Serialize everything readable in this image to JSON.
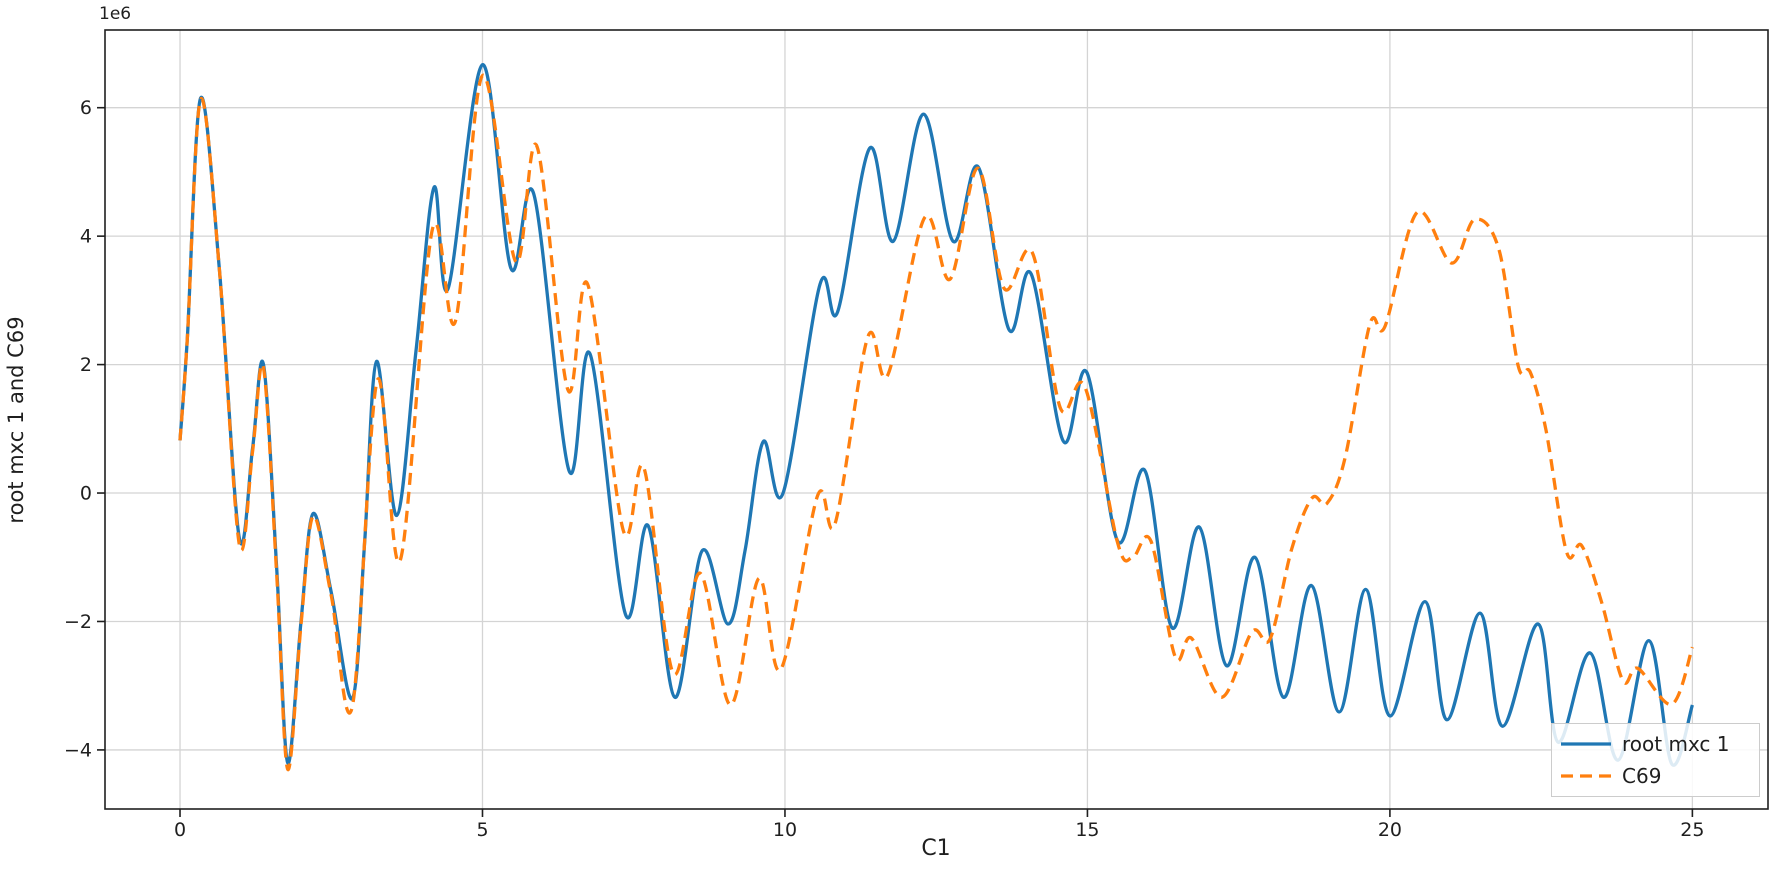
{
  "chart_data": {
    "type": "line",
    "title": "",
    "xlabel": "C1",
    "ylabel": "root mxc 1 and C69",
    "y_offset_label": "1e6",
    "value_unit": "1e6 (all series y values are in millions)",
    "xlim": [
      -1.24,
      26.25
    ],
    "ylim": [
      -4.92,
      7.21
    ],
    "grid": true,
    "xticks": {
      "values": [
        0,
        5,
        10,
        15,
        20,
        25
      ],
      "labels": [
        "0",
        "5",
        "10",
        "15",
        "20",
        "25"
      ]
    },
    "yticks": {
      "values": [
        -4,
        -2,
        0,
        2,
        4,
        6
      ],
      "labels": [
        "−4",
        "−2",
        "0",
        "2",
        "4",
        "6"
      ]
    },
    "legend": {
      "position": "lower right",
      "entries": [
        {
          "label": "root mxc 1",
          "color": "#1f77b4",
          "style": "solid"
        },
        {
          "label": "C69",
          "color": "#ff7f0e",
          "style": "dashed"
        }
      ]
    },
    "series": [
      {
        "name": "root mxc 1",
        "color": "#1f77b4",
        "style": "solid",
        "points": [
          [
            0,
            0.82
          ],
          [
            0.12,
            2.4
          ],
          [
            0.34,
            6.15
          ],
          [
            0.65,
            3.5
          ],
          [
            0.98,
            -0.7
          ],
          [
            1.2,
            0.7
          ],
          [
            1.38,
            2.0
          ],
          [
            1.6,
            -1.2
          ],
          [
            1.78,
            -4.2
          ],
          [
            2.0,
            -2.0
          ],
          [
            2.2,
            -0.32
          ],
          [
            2.5,
            -1.55
          ],
          [
            2.85,
            -3.2
          ],
          [
            3.05,
            -0.8
          ],
          [
            3.25,
            2.05
          ],
          [
            3.58,
            -0.35
          ],
          [
            3.9,
            2.2
          ],
          [
            4.2,
            4.76
          ],
          [
            4.43,
            3.18
          ],
          [
            5.0,
            6.67
          ],
          [
            5.47,
            3.5
          ],
          [
            5.85,
            4.65
          ],
          [
            6.43,
            0.35
          ],
          [
            6.78,
            2.16
          ],
          [
            7.36,
            -1.88
          ],
          [
            7.74,
            -0.51
          ],
          [
            8.18,
            -3.18
          ],
          [
            8.63,
            -0.9
          ],
          [
            9.06,
            -2.04
          ],
          [
            9.34,
            -0.9
          ],
          [
            9.64,
            0.8
          ],
          [
            9.97,
            0.0
          ],
          [
            10.58,
            3.25
          ],
          [
            10.87,
            2.82
          ],
          [
            11.4,
            5.37
          ],
          [
            11.79,
            3.92
          ],
          [
            12.29,
            5.9
          ],
          [
            12.78,
            3.92
          ],
          [
            13.2,
            5.07
          ],
          [
            13.7,
            2.55
          ],
          [
            14.07,
            3.41
          ],
          [
            14.6,
            0.81
          ],
          [
            14.99,
            1.88
          ],
          [
            15.5,
            -0.75
          ],
          [
            15.95,
            0.35
          ],
          [
            16.4,
            -2.1
          ],
          [
            16.85,
            -0.53
          ],
          [
            17.3,
            -2.69
          ],
          [
            17.77,
            -1.0
          ],
          [
            18.24,
            -3.18
          ],
          [
            18.7,
            -1.44
          ],
          [
            19.16,
            -3.41
          ],
          [
            19.6,
            -1.5
          ],
          [
            20.0,
            -3.47
          ],
          [
            20.58,
            -1.69
          ],
          [
            20.94,
            -3.53
          ],
          [
            21.49,
            -1.87
          ],
          [
            21.86,
            -3.63
          ],
          [
            22.45,
            -2.04
          ],
          [
            22.78,
            -3.88
          ],
          [
            23.31,
            -2.49
          ],
          [
            23.77,
            -4.16
          ],
          [
            24.28,
            -2.3
          ],
          [
            24.66,
            -4.22
          ],
          [
            25,
            -3.3
          ]
        ]
      },
      {
        "name": "C69",
        "color": "#ff7f0e",
        "style": "dashed",
        "points": [
          [
            0,
            0.82
          ],
          [
            0.12,
            2.4
          ],
          [
            0.34,
            6.13
          ],
          [
            0.65,
            3.5
          ],
          [
            0.98,
            -0.8
          ],
          [
            1.2,
            0.65
          ],
          [
            1.38,
            1.95
          ],
          [
            1.6,
            -1.3
          ],
          [
            1.78,
            -4.3
          ],
          [
            2.0,
            -2.05
          ],
          [
            2.2,
            -0.36
          ],
          [
            2.5,
            -1.6
          ],
          [
            2.85,
            -3.32
          ],
          [
            3.26,
            1.75
          ],
          [
            3.64,
            -1.05
          ],
          [
            4.17,
            4.1
          ],
          [
            4.55,
            2.67
          ],
          [
            5.0,
            6.5
          ],
          [
            5.55,
            3.6
          ],
          [
            5.9,
            5.4
          ],
          [
            6.41,
            1.61
          ],
          [
            6.74,
            3.25
          ],
          [
            7.33,
            -0.59
          ],
          [
            7.67,
            0.39
          ],
          [
            8.15,
            -2.8
          ],
          [
            8.6,
            -1.25
          ],
          [
            9.1,
            -3.3
          ],
          [
            9.57,
            -1.33
          ],
          [
            9.93,
            -2.75
          ],
          [
            10.54,
            -0.04
          ],
          [
            10.83,
            -0.47
          ],
          [
            11.37,
            2.43
          ],
          [
            11.7,
            1.84
          ],
          [
            12.31,
            4.29
          ],
          [
            12.73,
            3.33
          ],
          [
            13.19,
            5.06
          ],
          [
            13.62,
            3.19
          ],
          [
            14.09,
            3.74
          ],
          [
            14.55,
            1.33
          ],
          [
            14.96,
            1.65
          ],
          [
            15.5,
            -0.78
          ],
          [
            15.75,
            -1.0
          ],
          [
            16.05,
            -0.75
          ],
          [
            16.45,
            -2.55
          ],
          [
            16.72,
            -2.26
          ],
          [
            17.22,
            -3.18
          ],
          [
            17.72,
            -2.16
          ],
          [
            18.02,
            -2.27
          ],
          [
            18.38,
            -0.86
          ],
          [
            18.71,
            -0.08
          ],
          [
            18.96,
            -0.16
          ],
          [
            19.26,
            0.55
          ],
          [
            19.67,
            2.63
          ],
          [
            19.92,
            2.6
          ],
          [
            20.45,
            4.37
          ],
          [
            21.02,
            3.58
          ],
          [
            21.4,
            4.26
          ],
          [
            21.8,
            3.8
          ],
          [
            22.12,
            1.98
          ],
          [
            22.32,
            1.88
          ],
          [
            22.58,
            0.98
          ],
          [
            22.92,
            -0.92
          ],
          [
            23.17,
            -0.82
          ],
          [
            23.5,
            -1.7
          ],
          [
            23.85,
            -2.92
          ],
          [
            24.1,
            -2.73
          ],
          [
            24.66,
            -3.29
          ],
          [
            25,
            -2.4
          ]
        ]
      }
    ],
    "style": {
      "grid_color": "#d4d4d4",
      "spine_color": "#1f1f1f",
      "background": "#ffffff",
      "line_width": 3.3
    }
  }
}
